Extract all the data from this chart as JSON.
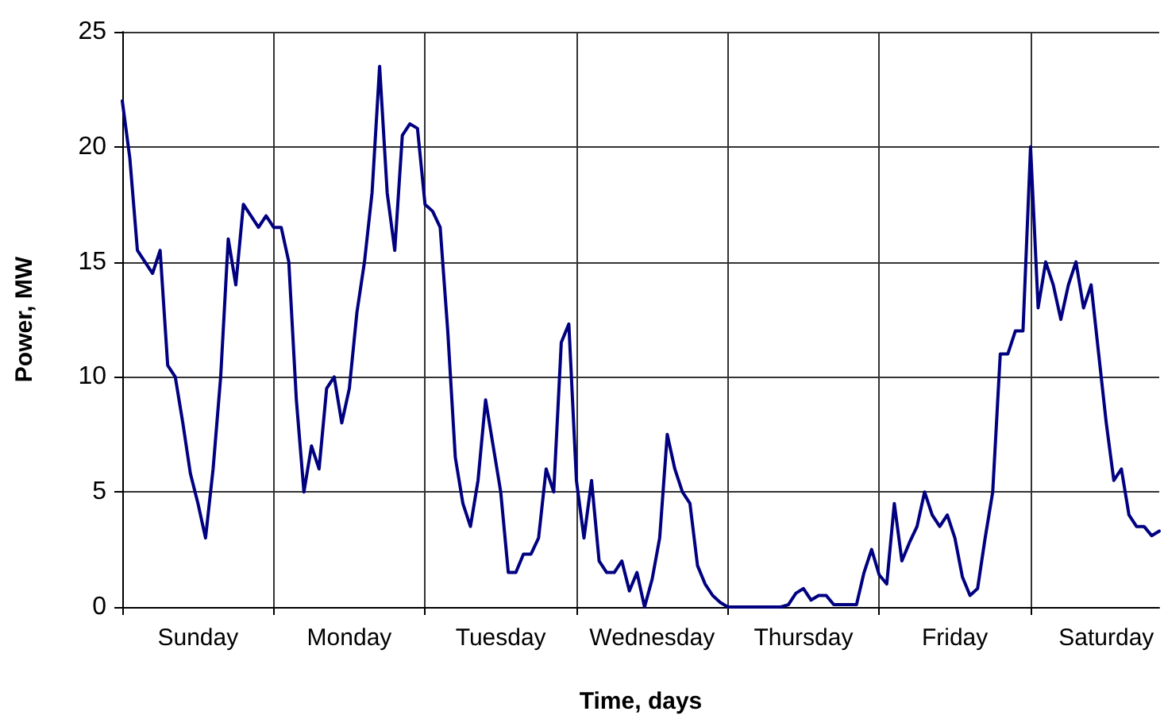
{
  "chart_data": {
    "type": "line",
    "xlabel": "Time, days",
    "ylabel": "Power, MW",
    "categories": [
      null,
      null,
      null,
      null,
      null,
      null,
      null,
      null,
      null,
      null,
      "Sunday",
      null,
      null,
      null,
      null,
      null,
      null,
      null,
      null,
      null,
      null,
      null,
      null,
      null,
      null,
      null,
      null,
      null,
      null,
      null,
      "Monday",
      null,
      null,
      null,
      null,
      null,
      null,
      null,
      null,
      null,
      null,
      null,
      null,
      null,
      null,
      null,
      null,
      null,
      null,
      null,
      "Tuesday",
      null,
      null,
      null,
      null,
      null,
      null,
      null,
      null,
      null,
      null,
      null,
      null,
      null,
      null,
      null,
      null,
      null,
      null,
      null,
      "Wednesday",
      null,
      null,
      null,
      null,
      null,
      null,
      null,
      null,
      null,
      null,
      null,
      null,
      null,
      null,
      null,
      null,
      null,
      null,
      null,
      "Thursday",
      null,
      null,
      null,
      null,
      null,
      null,
      null,
      null,
      null,
      null,
      null,
      null,
      null,
      null,
      null,
      null,
      null,
      null,
      null,
      "Friday",
      null,
      null,
      null,
      null,
      null,
      null,
      null,
      null,
      null,
      null,
      null,
      null,
      null,
      null,
      null,
      null,
      null,
      null,
      null,
      "Saturday",
      null,
      null,
      null,
      null,
      null,
      null,
      null
    ],
    "ylim": [
      0,
      25
    ],
    "yticks": [
      0,
      5,
      10,
      15,
      20,
      25
    ],
    "grid": true,
    "marker": "none",
    "line_style": "solid",
    "series": [
      {
        "color": "#000080",
        "values": [
          22,
          19.5,
          15.5,
          15,
          14.5,
          15.5,
          10.5,
          10,
          8,
          5.8,
          4.5,
          3.0,
          6,
          10,
          16,
          14,
          17.5,
          17,
          16.5,
          17,
          16.5,
          16.5,
          15,
          9,
          5,
          7,
          6,
          9.5,
          10,
          8,
          9.5,
          12.8,
          15,
          18,
          23.5,
          18,
          15.5,
          20.5,
          21,
          20.8,
          17.5,
          17.2,
          16.5,
          12,
          6.5,
          4.5,
          3.5,
          5.5,
          9,
          7,
          5,
          1.5,
          1.5,
          2.3,
          2.3,
          3,
          6,
          5,
          11.5,
          12.3,
          5.5,
          3,
          5.5,
          2,
          1.5,
          1.5,
          2,
          0.7,
          1.5,
          0,
          1.2,
          3,
          7.5,
          6,
          5,
          4.5,
          1.8,
          1,
          0.5,
          0.2,
          0,
          0,
          0,
          0,
          0,
          0,
          0,
          0,
          0.1,
          0.6,
          0.8,
          0.3,
          0.5,
          0.5,
          0.1,
          0.1,
          0.1,
          0.1,
          1.5,
          2.5,
          1.4,
          1,
          4.5,
          2,
          2.8,
          3.5,
          5,
          4,
          3.5,
          4,
          3,
          1.3,
          0.5,
          0.8,
          3,
          5,
          11,
          11,
          12,
          12,
          20,
          13,
          15,
          14,
          12.5,
          14,
          15,
          13,
          14,
          11,
          8,
          5.5,
          6,
          4,
          3.5,
          3.5,
          3.1,
          3.3
        ]
      }
    ]
  }
}
